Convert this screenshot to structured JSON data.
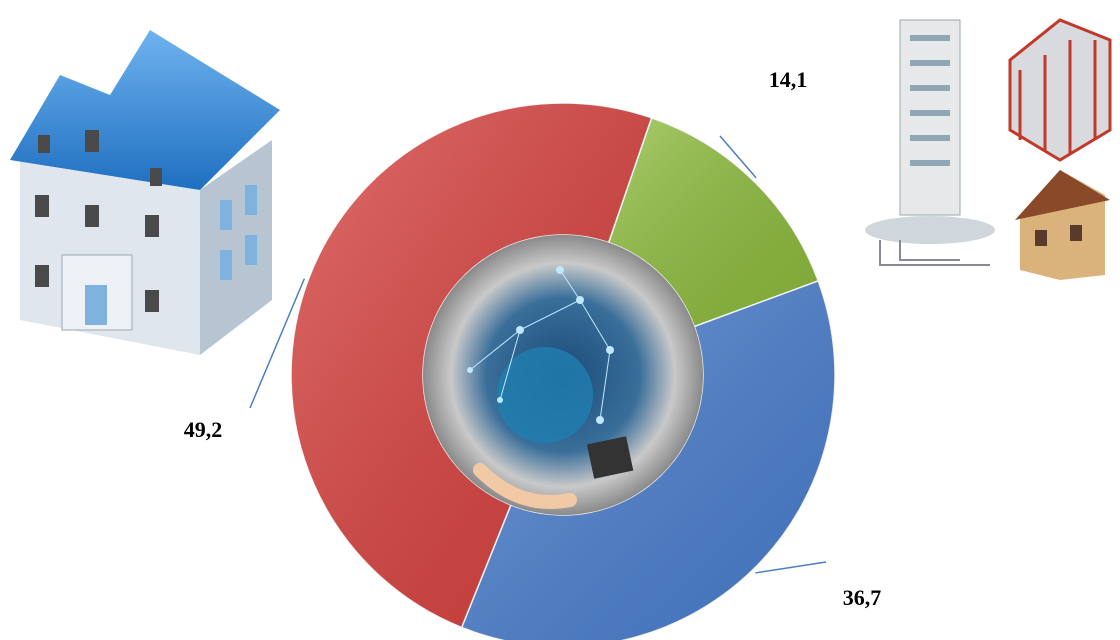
{
  "chart_data": {
    "type": "donut",
    "values": [
      14.1,
      36.7,
      49.2
    ],
    "value_labels": [
      "14,1",
      "36,7",
      "49,2"
    ],
    "colors": [
      "#8dbd3c",
      "#4a7fd0",
      "#d8403d"
    ]
  }
}
